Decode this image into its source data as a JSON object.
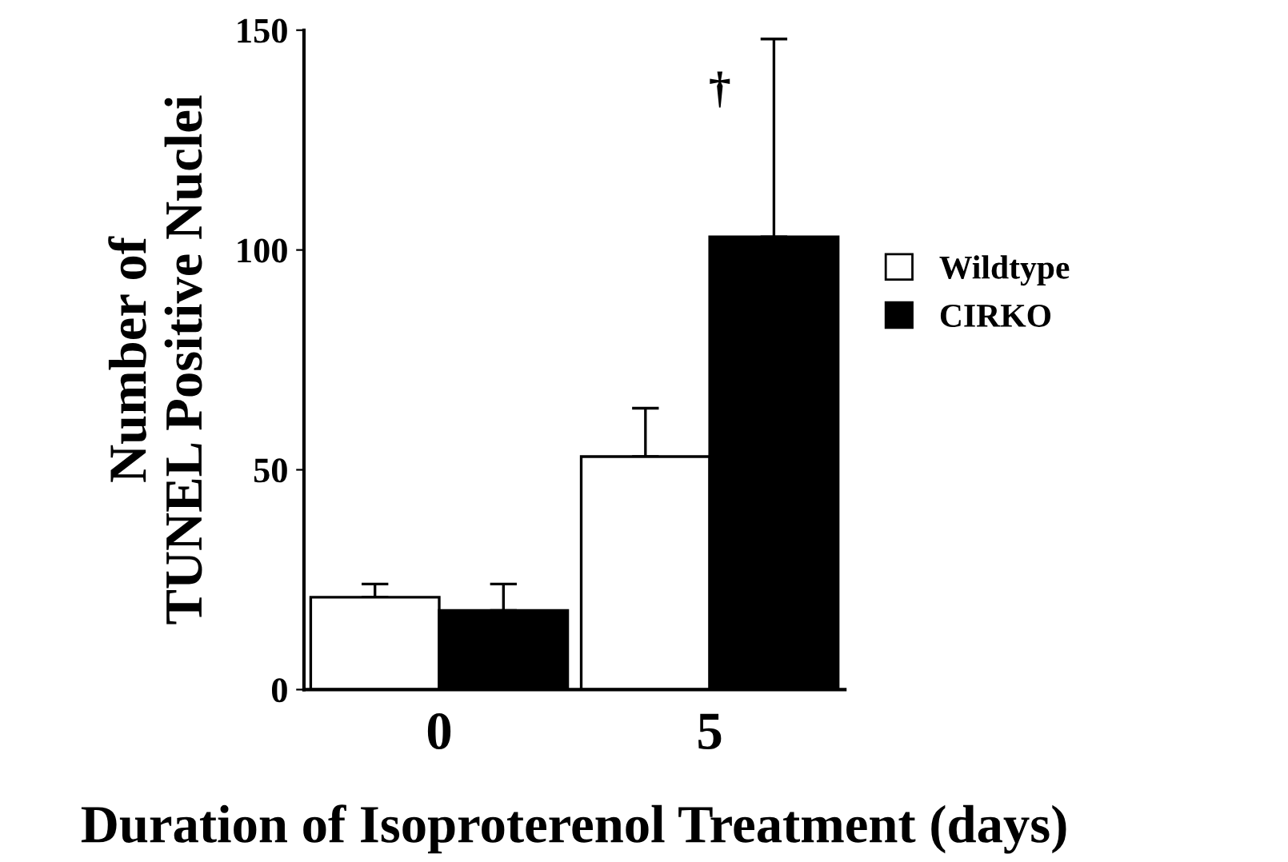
{
  "chart_data": {
    "type": "bar",
    "xlabel": "Duration of Isoproterenol Treatment (days)",
    "ylabel": "Number of\nTUNEL Positive Nuclei",
    "categories": [
      "0",
      "5"
    ],
    "series": [
      {
        "name": "Wildtype",
        "color": "#ffffff",
        "values": [
          21,
          53
        ],
        "errors": [
          [
            21,
            24
          ],
          [
            53,
            64
          ]
        ]
      },
      {
        "name": "CIRKO",
        "color": "#000000",
        "values": [
          18,
          103
        ],
        "errors": [
          [
            18,
            24
          ],
          [
            103,
            148
          ]
        ]
      }
    ],
    "annotations": [
      "†"
    ],
    "ylim": [
      0,
      150
    ],
    "yticks": [
      0,
      50,
      100,
      150
    ],
    "grid": false,
    "legend": "right"
  }
}
